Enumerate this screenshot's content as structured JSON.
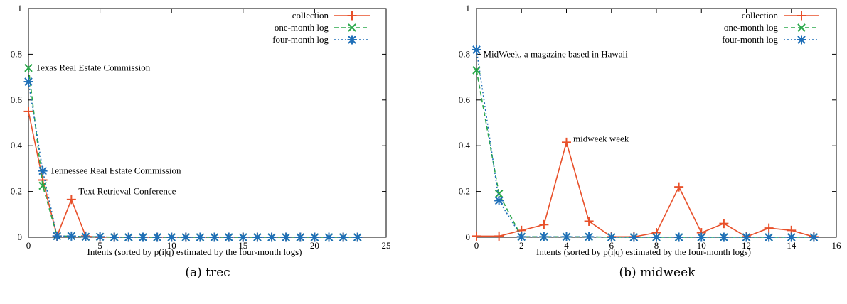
{
  "colors": {
    "collection": "#e8502a",
    "one_month": "#2aa84a",
    "four_month": "#1f6fb8"
  },
  "chart_data": [
    {
      "type": "line",
      "caption": "(a) trec",
      "xlabel": "Intents (sorted by p(i|q) estimated by the four-month logs)",
      "ylabel": "",
      "xlim": [
        0,
        25
      ],
      "ylim": [
        0,
        1
      ],
      "xticks": [
        0,
        5,
        10,
        15,
        20,
        25
      ],
      "yticks": [
        0,
        0.2,
        0.4,
        0.6,
        0.8,
        1
      ],
      "yticklabels": [
        "0",
        "0.2",
        "0.4",
        "0.6",
        "0.8",
        "1"
      ],
      "legend_position": "top-right",
      "series": [
        {
          "name": "collection",
          "color": "collection",
          "marker": "plus",
          "dash": "",
          "x": [
            0,
            1,
            2,
            3,
            4,
            5,
            6,
            7,
            8,
            9,
            10,
            11,
            12,
            13,
            14,
            15,
            16,
            17,
            18,
            19,
            20,
            21,
            22,
            23
          ],
          "y": [
            0.55,
            0.25,
            0.005,
            0.165,
            0.005,
            0,
            0,
            0,
            0,
            0,
            0,
            0,
            0,
            0,
            0,
            0,
            0,
            0,
            0,
            0,
            0,
            0,
            0,
            0
          ]
        },
        {
          "name": "one-month log",
          "color": "one_month",
          "marker": "x",
          "dash": "6,4",
          "x": [
            0,
            1,
            2,
            3,
            4,
            5,
            6,
            7,
            8,
            9,
            10,
            11,
            12,
            13,
            14,
            15,
            16,
            17,
            18,
            19,
            20,
            21,
            22,
            23
          ],
          "y": [
            0.74,
            0.225,
            0.005,
            0.005,
            0.002,
            0.002,
            0,
            0,
            0,
            0,
            0,
            0,
            0,
            0,
            0,
            0,
            0,
            0,
            0,
            0,
            0,
            0,
            0,
            0
          ]
        },
        {
          "name": "four-month log",
          "color": "four_month",
          "marker": "star",
          "dash": "2,3",
          "x": [
            0,
            1,
            2,
            3,
            4,
            5,
            6,
            7,
            8,
            9,
            10,
            11,
            12,
            13,
            14,
            15,
            16,
            17,
            18,
            19,
            20,
            21,
            22,
            23
          ],
          "y": [
            0.68,
            0.29,
            0.005,
            0.005,
            0.002,
            0.002,
            0,
            0,
            0,
            0,
            0,
            0,
            0,
            0,
            0,
            0,
            0,
            0,
            0,
            0,
            0,
            0,
            0,
            0
          ]
        }
      ],
      "annotations": [
        {
          "text": "Texas Real Estate Commission",
          "x": 0.5,
          "y": 0.74
        },
        {
          "text": "Tennessee Real Estate Commission",
          "x": 1.5,
          "y": 0.29
        },
        {
          "text": "Text Retrieval Conference",
          "x": 3.5,
          "y": 0.2
        }
      ]
    },
    {
      "type": "line",
      "caption": "(b) midweek",
      "xlabel": "Intents (sorted by p(i|q) estimated by the four-month logs)",
      "ylabel": "",
      "xlim": [
        0,
        16
      ],
      "ylim": [
        0,
        1
      ],
      "xticks": [
        0,
        2,
        4,
        6,
        8,
        10,
        12,
        14,
        16
      ],
      "yticks": [
        0,
        0.2,
        0.4,
        0.6,
        0.8,
        1
      ],
      "yticklabels": [
        "0",
        "0.2",
        "0.4",
        "0.6",
        "0.8",
        "1"
      ],
      "legend_position": "top-right",
      "series": [
        {
          "name": "collection",
          "color": "collection",
          "marker": "plus",
          "dash": "",
          "x": [
            0,
            1,
            2,
            3,
            4,
            5,
            6,
            7,
            8,
            9,
            10,
            11,
            12,
            13,
            14,
            15
          ],
          "y": [
            0.005,
            0.005,
            0.03,
            0.055,
            0.415,
            0.07,
            0.002,
            0.002,
            0.02,
            0.22,
            0.02,
            0.06,
            0.002,
            0.04,
            0.03,
            0.002
          ]
        },
        {
          "name": "one-month log",
          "color": "one_month",
          "marker": "x",
          "dash": "6,4",
          "x": [
            0,
            1,
            2,
            3,
            4,
            5,
            6,
            7,
            8,
            9,
            10,
            11,
            12,
            13,
            14,
            15
          ],
          "y": [
            0.73,
            0.19,
            0.002,
            0.002,
            0.002,
            0.002,
            0,
            0,
            0,
            0,
            0,
            0,
            0,
            0,
            0,
            0
          ]
        },
        {
          "name": "four-month log",
          "color": "four_month",
          "marker": "star",
          "dash": "2,3",
          "x": [
            0,
            1,
            2,
            3,
            4,
            5,
            6,
            7,
            8,
            9,
            10,
            11,
            12,
            13,
            14,
            15
          ],
          "y": [
            0.82,
            0.16,
            0.002,
            0.002,
            0.002,
            0.002,
            0,
            0,
            0,
            0,
            0,
            0,
            0,
            0,
            0,
            0
          ]
        }
      ],
      "annotations": [
        {
          "text": "MidWeek, a magazine based in Hawaii",
          "x": 0.3,
          "y": 0.8
        },
        {
          "text": "midweek week",
          "x": 4.3,
          "y": 0.43
        }
      ]
    }
  ]
}
